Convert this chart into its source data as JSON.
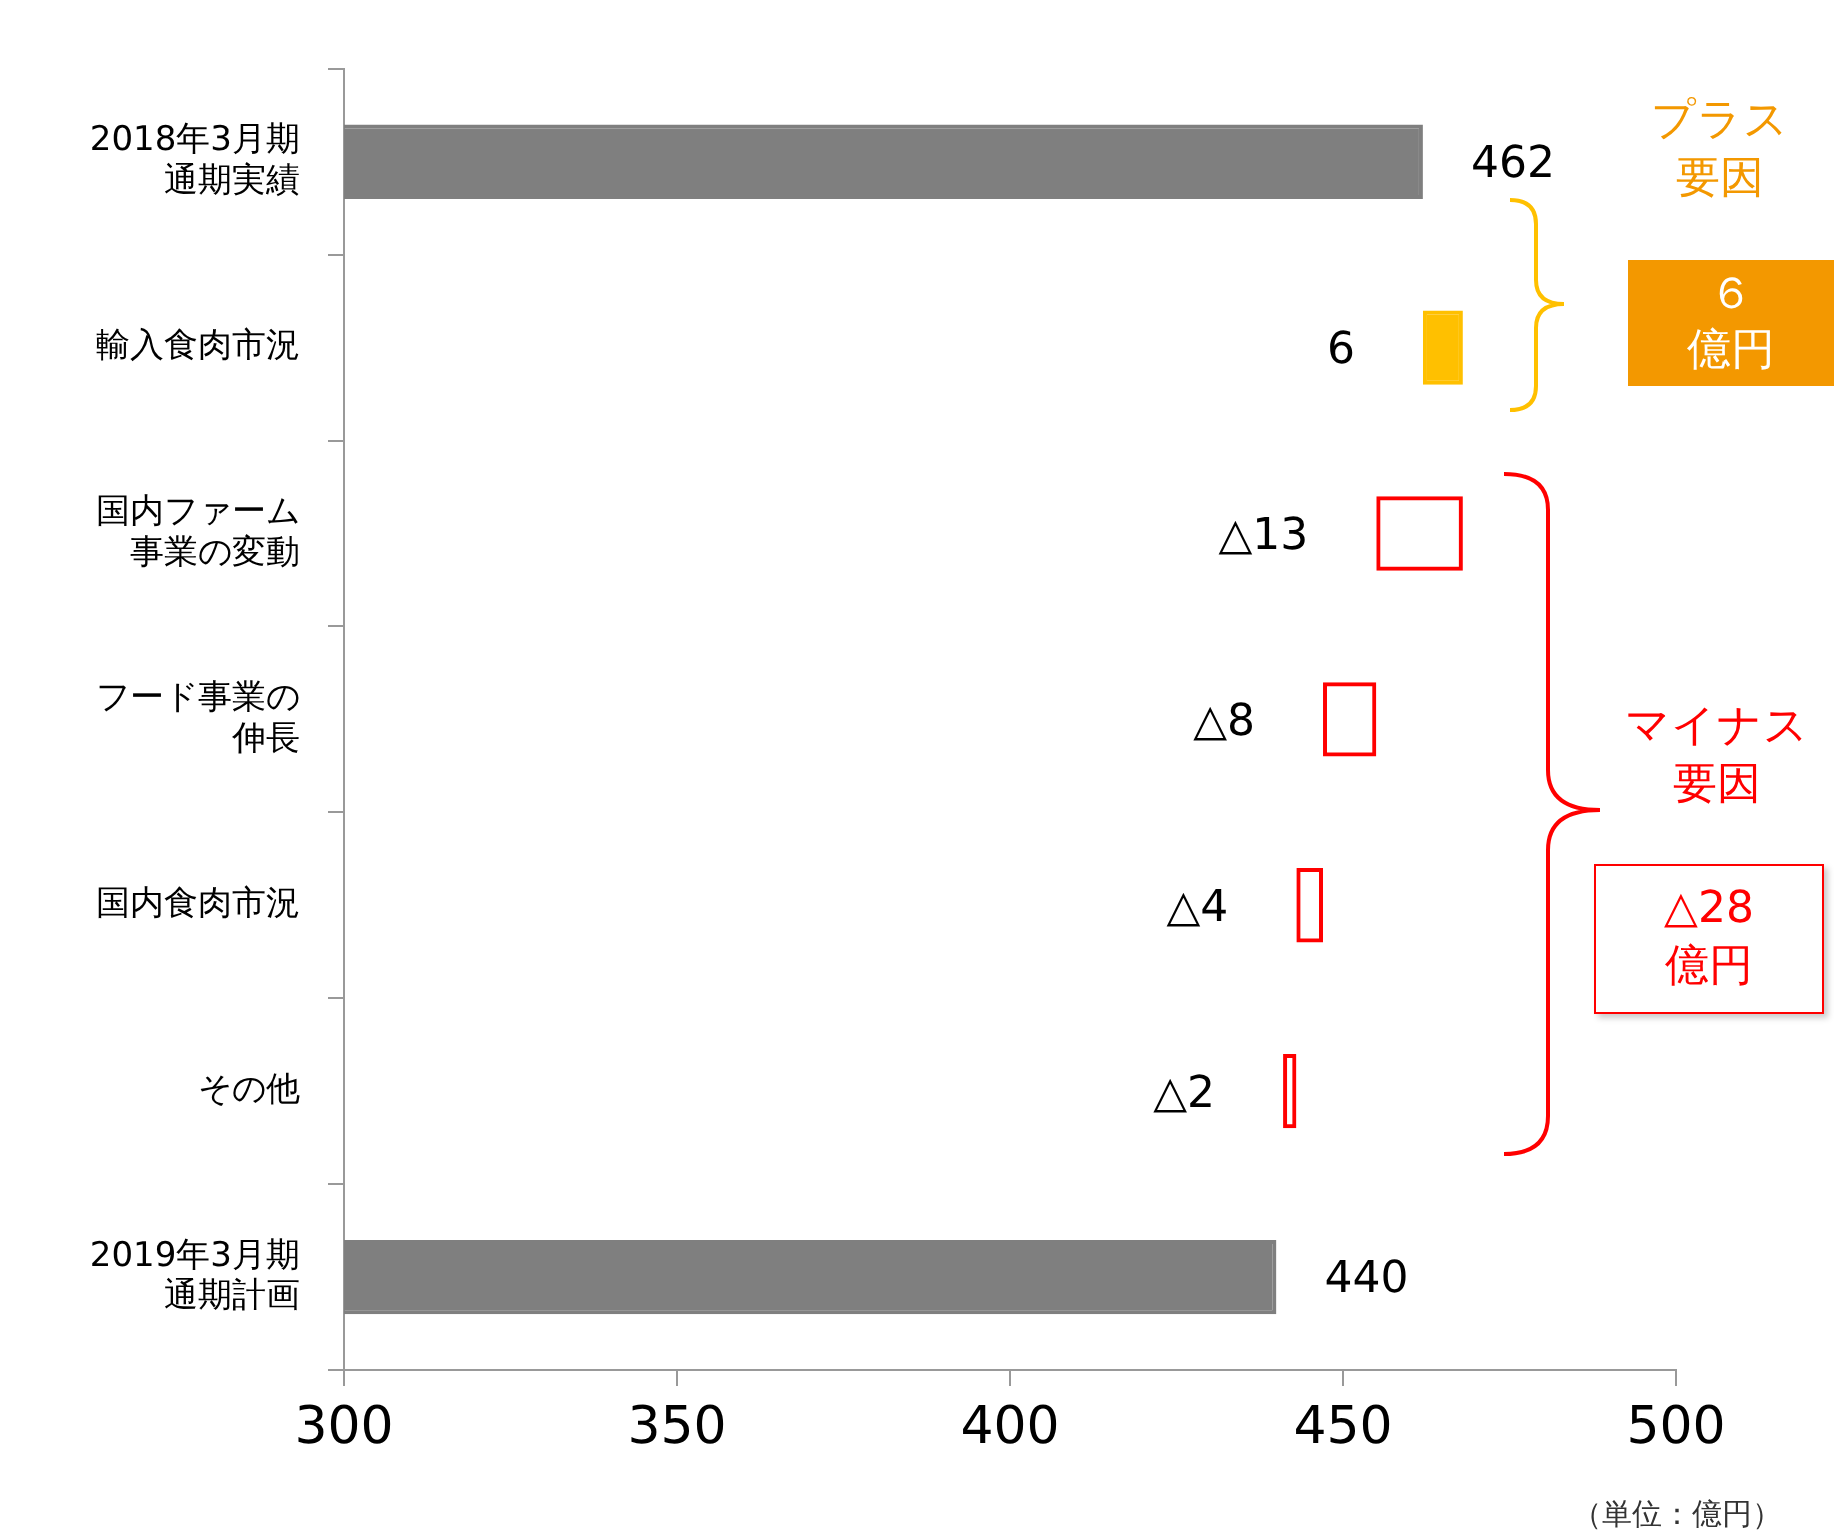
{
  "chart_data": {
    "type": "bar",
    "orientation": "horizontal",
    "categories": [
      "2018年3月期通期実績",
      "輸入食肉市況",
      "国内ファーム事業の変動",
      "フード事業の伸長",
      "国内食肉市況",
      "その他",
      "2019年3月期通期計画"
    ],
    "values": [
      462,
      6,
      -13,
      -8,
      -4,
      -2,
      440
    ],
    "base": [
      null,
      462,
      468,
      455,
      447,
      443,
      null
    ],
    "colors": [
      "#7f7f7f",
      "#ffc000",
      "#ff0000",
      "#ff0000",
      "#ff0000",
      "#ff0000",
      "#7f7f7f"
    ],
    "value_labels": [
      "462",
      "6",
      "△13",
      "△8",
      "△4",
      "△2",
      "440"
    ],
    "xlim": [
      300,
      500
    ],
    "xticks": [
      300,
      350,
      400,
      450,
      500
    ],
    "grid": false,
    "legend": false,
    "annotations": [
      "プラス要因",
      "６億円",
      "マイナス要因",
      "△28億円",
      "（単位：億円）"
    ]
  }
}
